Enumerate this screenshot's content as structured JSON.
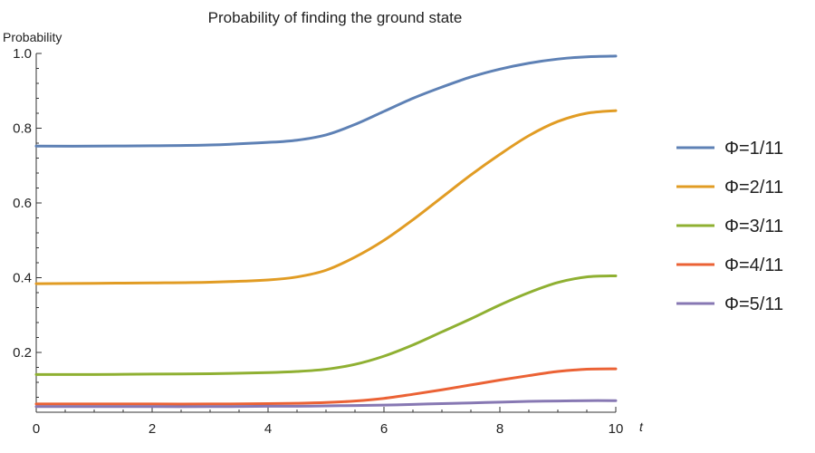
{
  "chart_data": {
    "type": "line",
    "title": "Probability of finding the ground state",
    "xlabel": "t",
    "ylabel": "Probability",
    "xlim": [
      0,
      10
    ],
    "ylim": [
      0.04,
      1.0
    ],
    "xticks": [
      0,
      2,
      4,
      6,
      8,
      10
    ],
    "yticks": [
      0.2,
      0.4,
      0.6,
      0.8,
      1.0
    ],
    "ytick_labels": [
      "0.2",
      "0.4",
      "0.6",
      "0.8",
      "1.0"
    ],
    "grid": false,
    "legend_position": "right",
    "x": [
      0,
      1,
      2,
      3,
      4,
      4.5,
      5,
      5.5,
      6,
      6.5,
      7,
      7.5,
      8,
      8.5,
      9,
      9.5,
      10
    ],
    "series": [
      {
        "name": "Φ=1/11",
        "color": "#5E81B5",
        "values": [
          0.752,
          0.752,
          0.753,
          0.755,
          0.762,
          0.768,
          0.782,
          0.81,
          0.845,
          0.88,
          0.91,
          0.937,
          0.958,
          0.974,
          0.985,
          0.991,
          0.993
        ]
      },
      {
        "name": "Φ=2/11",
        "color": "#E19C24",
        "values": [
          0.384,
          0.385,
          0.386,
          0.388,
          0.394,
          0.402,
          0.42,
          0.455,
          0.5,
          0.555,
          0.615,
          0.675,
          0.73,
          0.78,
          0.818,
          0.84,
          0.847
        ]
      },
      {
        "name": "Φ=3/11",
        "color": "#8FB032",
        "values": [
          0.141,
          0.141,
          0.142,
          0.143,
          0.146,
          0.149,
          0.155,
          0.168,
          0.19,
          0.22,
          0.255,
          0.29,
          0.327,
          0.36,
          0.387,
          0.402,
          0.405
        ]
      },
      {
        "name": "Φ=4/11",
        "color": "#EB6235",
        "values": [
          0.062,
          0.062,
          0.062,
          0.062,
          0.063,
          0.064,
          0.066,
          0.07,
          0.077,
          0.088,
          0.1,
          0.113,
          0.126,
          0.138,
          0.149,
          0.155,
          0.156
        ]
      },
      {
        "name": "Φ=5/11",
        "color": "#8778B3",
        "values": [
          0.055,
          0.055,
          0.055,
          0.055,
          0.056,
          0.056,
          0.057,
          0.058,
          0.059,
          0.061,
          0.063,
          0.065,
          0.067,
          0.069,
          0.07,
          0.071,
          0.071
        ]
      }
    ]
  }
}
